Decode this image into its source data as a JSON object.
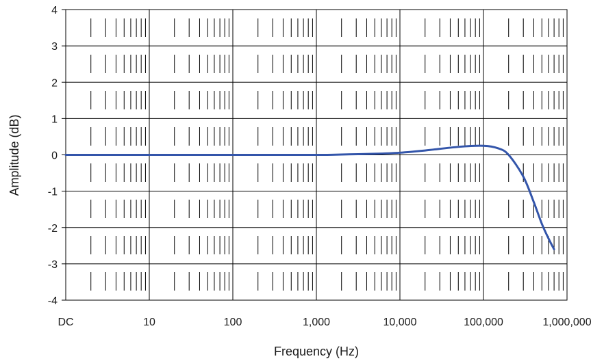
{
  "chart_data": {
    "type": "line",
    "title": "",
    "xlabel": "Frequency (Hz)",
    "ylabel": "Amplitude (dB)",
    "x_scale": "log",
    "x_tick_labels": [
      "DC",
      "10",
      "100",
      "1,000",
      "10,000",
      "100,000",
      "1,000,000"
    ],
    "y_tick_labels": [
      "4",
      "3",
      "2",
      "1",
      "0",
      "-1",
      "-2",
      "-3",
      "-4"
    ],
    "ylim": [
      -4,
      4
    ],
    "grid": true,
    "line_color": "#3355aa",
    "series": [
      {
        "x": [
          "DC",
          10,
          100,
          1000,
          2000,
          5000,
          10000,
          20000,
          50000,
          100000,
          150000,
          200000,
          300000,
          400000,
          500000,
          600000,
          700000
        ],
        "values": [
          0,
          0,
          0,
          0,
          0.01,
          0.03,
          0.06,
          0.12,
          0.22,
          0.25,
          0.18,
          0.0,
          -0.6,
          -1.3,
          -1.9,
          -2.3,
          -2.6
        ]
      }
    ]
  }
}
